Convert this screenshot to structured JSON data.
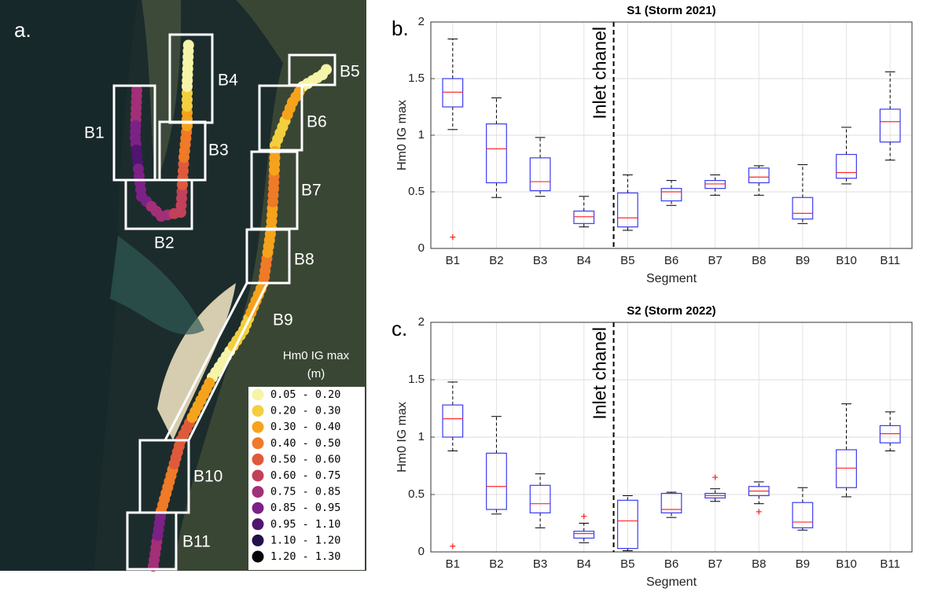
{
  "map": {
    "panel_label": "a.",
    "boxes": [
      "B1",
      "B2",
      "B3",
      "B4",
      "B5",
      "B6",
      "B7",
      "B8",
      "B9",
      "B10",
      "B11"
    ],
    "legend_title": "Hm0 IG max",
    "legend_unit": "(m)",
    "legend": [
      {
        "label": "0.05 - 0.20",
        "color": "#f6f4a8"
      },
      {
        "label": "0.20 - 0.30",
        "color": "#f3cf3f"
      },
      {
        "label": "0.30 - 0.40",
        "color": "#f6a31c"
      },
      {
        "label": "0.40 - 0.50",
        "color": "#ef7a27"
      },
      {
        "label": "0.50 - 0.60",
        "color": "#df5a3b"
      },
      {
        "label": "0.60 - 0.75",
        "color": "#c2405a"
      },
      {
        "label": "0.75 - 0.85",
        "color": "#a22f78"
      },
      {
        "label": "0.85 - 0.95",
        "color": "#7c2187"
      },
      {
        "label": "0.95 - 1.10",
        "color": "#4f1570"
      },
      {
        "label": "1.10 - 1.20",
        "color": "#24104a"
      },
      {
        "label": "1.20 - 1.30",
        "color": "#050507"
      }
    ]
  },
  "chart_data": [
    {
      "type": "box",
      "panel_label": "b.",
      "title": "S1 (Storm 2021)",
      "x_label": "Segment",
      "y_label": "Hm0 IG max",
      "annotation": "Inlet chanel",
      "categories": [
        "B1",
        "B2",
        "B3",
        "B4",
        "B5",
        "B6",
        "B7",
        "B8",
        "B9",
        "B10",
        "B11"
      ],
      "min": [
        1.05,
        0.45,
        0.46,
        0.19,
        0.16,
        0.38,
        0.47,
        0.47,
        0.22,
        0.57,
        0.78
      ],
      "q1": [
        1.25,
        0.58,
        0.51,
        0.22,
        0.19,
        0.42,
        0.53,
        0.58,
        0.26,
        0.62,
        0.94
      ],
      "median": [
        1.38,
        0.88,
        0.59,
        0.28,
        0.27,
        0.5,
        0.57,
        0.63,
        0.31,
        0.67,
        1.12
      ],
      "q3": [
        1.5,
        1.1,
        0.8,
        0.33,
        0.49,
        0.53,
        0.6,
        0.71,
        0.45,
        0.83,
        1.23
      ],
      "max": [
        1.85,
        1.33,
        0.98,
        0.46,
        0.65,
        0.6,
        0.65,
        0.73,
        0.74,
        1.07,
        1.56
      ],
      "outliers": [
        [
          0.1
        ],
        [],
        [],
        [],
        [],
        [],
        [],
        [],
        [],
        [],
        []
      ],
      "ylim": [
        0,
        2
      ],
      "yticks": [
        0,
        0.5,
        1,
        1.5,
        2
      ],
      "grid": true,
      "box_color": "#3b3bf0",
      "median_color": "#ff2a2a",
      "outlier_color": "#ff2a2a"
    },
    {
      "type": "box",
      "panel_label": "c.",
      "title": "S2 (Storm 2022)",
      "x_label": "Segment",
      "y_label": "Hm0 IG max",
      "annotation": "Inlet chanel",
      "categories": [
        "B1",
        "B2",
        "B3",
        "B4",
        "B5",
        "B6",
        "B7",
        "B8",
        "B9",
        "B10",
        "B11"
      ],
      "min": [
        0.88,
        0.33,
        0.21,
        0.08,
        0.01,
        0.3,
        0.44,
        0.42,
        0.19,
        0.48,
        0.88
      ],
      "q1": [
        1.0,
        0.37,
        0.34,
        0.12,
        0.03,
        0.34,
        0.47,
        0.49,
        0.21,
        0.56,
        0.95
      ],
      "median": [
        1.16,
        0.57,
        0.42,
        0.16,
        0.27,
        0.37,
        0.49,
        0.53,
        0.26,
        0.73,
        1.03
      ],
      "q3": [
        1.28,
        0.86,
        0.58,
        0.18,
        0.45,
        0.51,
        0.51,
        0.57,
        0.43,
        0.89,
        1.1
      ],
      "max": [
        1.48,
        1.18,
        0.68,
        0.25,
        0.49,
        0.52,
        0.55,
        0.61,
        0.56,
        1.29,
        1.22
      ],
      "outliers": [
        [
          0.05
        ],
        [],
        [],
        [
          0.31
        ],
        [],
        [],
        [
          0.65
        ],
        [
          0.35
        ],
        [],
        [],
        []
      ],
      "ylim": [
        0,
        2
      ],
      "yticks": [
        0,
        0.5,
        1,
        1.5,
        2
      ],
      "grid": true,
      "box_color": "#3b3bf0",
      "median_color": "#ff2a2a",
      "outlier_color": "#ff2a2a"
    }
  ]
}
